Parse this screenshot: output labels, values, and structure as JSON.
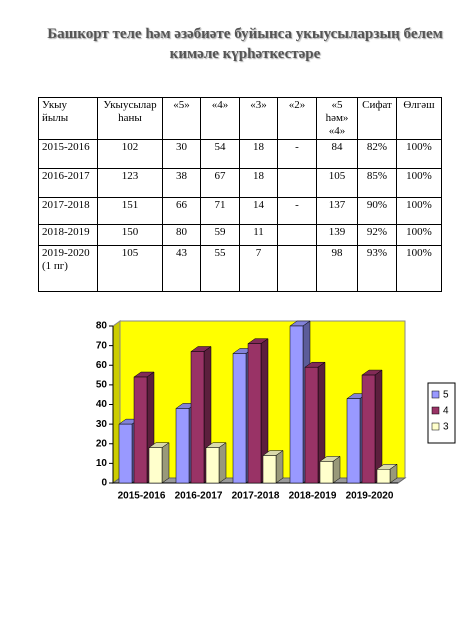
{
  "title": "Башкорт теле һәм әзәбиәте буйынса укыусыларзың белем кимәле күрһәткестәре",
  "table": {
    "header": [
      "Укыу йылы",
      "Укыусылар һаны",
      "«5»",
      "«4»",
      "«3»",
      "«2»",
      "«5 һәм» «4»",
      "Сифат",
      "Өлгәш"
    ],
    "rows": [
      [
        "2015-2016",
        "102",
        "30",
        "54",
        "18",
        "-",
        "84",
        "82%",
        "100%"
      ],
      [
        "2016-2017",
        "123",
        "38",
        "67",
        "18",
        null,
        "105",
        "85%",
        "100%"
      ],
      [
        "2017-2018",
        "151",
        "66",
        "71",
        "14",
        "-",
        "137",
        "90%",
        "100%"
      ],
      [
        "2018-2019",
        "150",
        "80",
        "59",
        "11",
        null,
        "139",
        "92%",
        "100%"
      ],
      [
        "2019-2020 (1 пг)",
        "105",
        "43",
        "55",
        "7",
        null,
        "98",
        "93%",
        "100%"
      ]
    ]
  },
  "chart_data": {
    "type": "bar3d",
    "categories": [
      "2015-2016",
      "2016-2017",
      "2017-2018",
      "2018-2019",
      "2019-2020"
    ],
    "series": [
      {
        "name": "5",
        "color": "#9999ff",
        "values": [
          30,
          38,
          66,
          80,
          43
        ]
      },
      {
        "name": "4",
        "color": "#993366",
        "values": [
          54,
          67,
          71,
          59,
          55
        ]
      },
      {
        "name": "3",
        "color": "#ffffcc",
        "values": [
          18,
          18,
          14,
          11,
          7
        ]
      }
    ],
    "ylim": [
      0,
      80
    ],
    "yticks": [
      0,
      10,
      20,
      30,
      40,
      50,
      60,
      70,
      80
    ],
    "background": "#ffff00",
    "legend": "right"
  }
}
